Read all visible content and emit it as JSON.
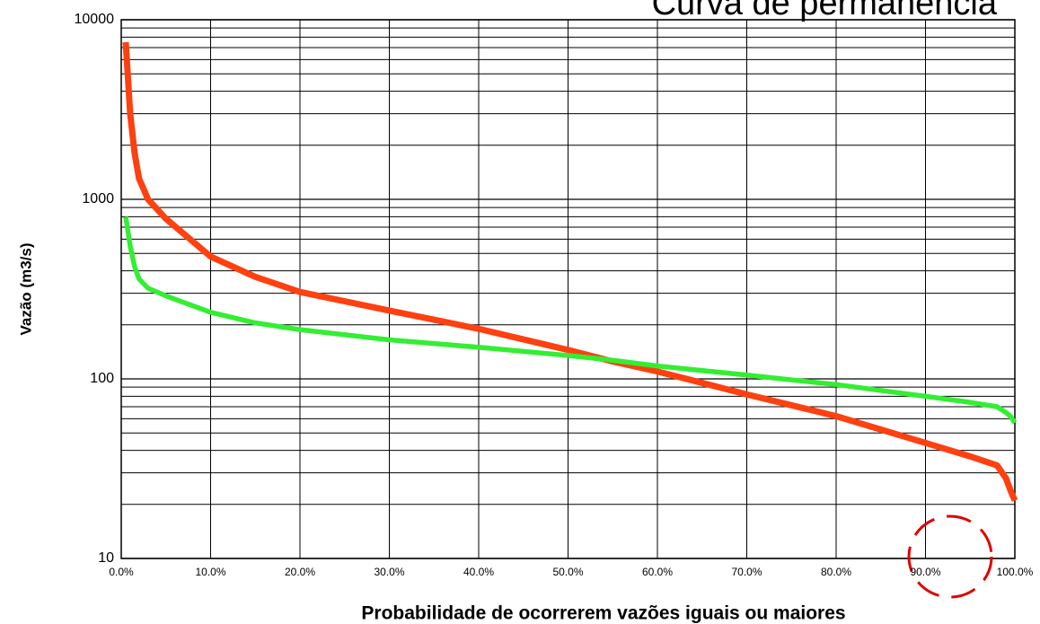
{
  "chart_data": {
    "type": "line",
    "title": "Curva de permanência",
    "x_label": "Probabilidade de ocorrerem vazões iguais ou maiores",
    "y_label": "Vazão (m3/s)",
    "x": [
      0.5,
      1,
      1.5,
      2,
      3,
      5,
      10,
      15,
      20,
      30,
      40,
      50,
      55,
      60,
      70,
      80,
      90,
      95,
      98,
      99,
      99.5,
      100
    ],
    "series": [
      {
        "color": "#ff4010",
        "values": [
          7500,
          3000,
          1800,
          1300,
          1000,
          780,
          480,
          370,
          305,
          240,
          190,
          145,
          125,
          110,
          82,
          62,
          44,
          37,
          33,
          28,
          24,
          21
        ]
      },
      {
        "color": "#33ee33",
        "values": [
          800,
          550,
          420,
          360,
          320,
          290,
          235,
          205,
          188,
          165,
          150,
          135,
          127,
          118,
          105,
          93,
          80,
          74,
          70,
          65,
          62,
          57
        ]
      }
    ],
    "xlim": [
      0,
      100
    ],
    "xticks": [
      {
        "value": 0,
        "label": "0.0%"
      },
      {
        "value": 10,
        "label": "10.0%"
      },
      {
        "value": 20,
        "label": "20.0%"
      },
      {
        "value": 30,
        "label": "30.0%"
      },
      {
        "value": 40,
        "label": "40.0%"
      },
      {
        "value": 50,
        "label": "50.0%"
      },
      {
        "value": 60,
        "label": "60.0%"
      },
      {
        "value": 70,
        "label": "70.0%"
      },
      {
        "value": 80,
        "label": "80.0%"
      },
      {
        "value": 90,
        "label": "90.0%"
      },
      {
        "value": 100,
        "label": "100.0%"
      }
    ],
    "ylim": [
      10,
      10000
    ],
    "yticks": [
      10,
      100,
      1000,
      10000
    ],
    "yminorticks": [
      20,
      30,
      40,
      50,
      60,
      70,
      80,
      90,
      200,
      300,
      400,
      500,
      600,
      700,
      800,
      900,
      2000,
      3000,
      4000,
      5000,
      6000,
      7000,
      8000,
      9000
    ],
    "ylog": true,
    "grid": true
  }
}
